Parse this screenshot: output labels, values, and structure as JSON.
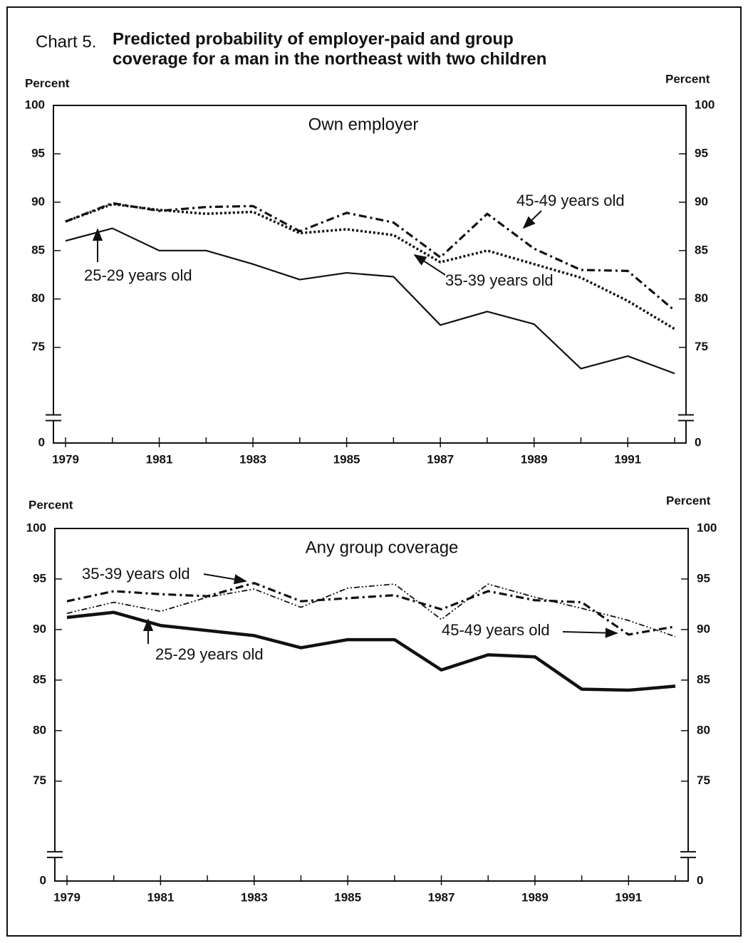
{
  "label": "Chart 5.",
  "title": [
    "Predicted probability of employer-paid and group",
    "coverage for a man in the northeast with two children"
  ],
  "chart_data": [
    {
      "type": "line",
      "title": "Own employer",
      "y_label": "Percent",
      "y2_label": "Percent",
      "x": [
        1979,
        1980,
        1981,
        1982,
        1983,
        1984,
        1985,
        1986,
        1987,
        1988,
        1989,
        1990,
        1991,
        1992
      ],
      "xlim": [
        1979,
        1992
      ],
      "xticks": [
        1979,
        1981,
        1983,
        1985,
        1987,
        1989,
        1991
      ],
      "ylim": [
        0,
        100
      ],
      "yticks": [
        0,
        75,
        80,
        85,
        90,
        95,
        100
      ],
      "y2lim": [
        0,
        100
      ],
      "y2ticks": [
        0,
        75,
        80,
        85,
        90,
        95,
        100
      ],
      "axis_break": [
        0,
        70
      ],
      "series": [
        {
          "name": "25-29 years old",
          "color": "#111111",
          "style": "solid",
          "values": [
            86.0,
            87.3,
            85.0,
            85.0,
            83.6,
            82.0,
            82.7,
            82.3,
            77.3,
            78.7,
            77.4,
            72.8,
            74.1,
            72.3
          ]
        },
        {
          "name": "35-39 years old",
          "color": "#111111",
          "style": "dotted",
          "values": [
            88.0,
            89.8,
            89.2,
            88.8,
            89.0,
            86.8,
            87.2,
            86.6,
            83.8,
            85.0,
            83.6,
            82.2,
            79.8,
            76.9
          ]
        },
        {
          "name": "45-49 years old",
          "color": "#111111",
          "style": "dashdot",
          "values": [
            88.0,
            89.9,
            89.1,
            89.5,
            89.6,
            87.0,
            88.9,
            87.9,
            84.3,
            88.8,
            85.2,
            83.0,
            82.9,
            78.8
          ]
        }
      ]
    },
    {
      "type": "line",
      "title": "Any group coverage",
      "y_label": "Percent",
      "y2_label": "Percent",
      "x": [
        1979,
        1980,
        1981,
        1982,
        1983,
        1984,
        1985,
        1986,
        1987,
        1988,
        1989,
        1990,
        1991,
        1992
      ],
      "xlim": [
        1979,
        1992
      ],
      "xticks": [
        1979,
        1981,
        1983,
        1985,
        1987,
        1989,
        1991
      ],
      "ylim": [
        0,
        100
      ],
      "yticks": [
        0,
        75,
        80,
        85,
        90,
        95,
        100
      ],
      "y2lim": [
        0,
        100
      ],
      "y2ticks": [
        0,
        75,
        80,
        85,
        90,
        95,
        100
      ],
      "axis_break": [
        0,
        70
      ],
      "series": [
        {
          "name": "25-29 years old",
          "color": "#111111",
          "style": "thick",
          "values": [
            91.2,
            91.7,
            90.4,
            89.9,
            89.4,
            88.2,
            89.0,
            89.0,
            86.0,
            87.5,
            87.3,
            84.1,
            84.0,
            84.4
          ]
        },
        {
          "name": "35-39 years old",
          "color": "#111111",
          "style": "dashdot",
          "values": [
            92.8,
            93.8,
            93.5,
            93.3,
            94.6,
            92.8,
            93.1,
            93.4,
            92.0,
            93.8,
            92.9,
            92.7,
            89.5,
            90.3
          ]
        },
        {
          "name": "45-49 years old",
          "color": "#111111",
          "style": "dashdotdot",
          "values": [
            91.6,
            92.7,
            91.8,
            93.2,
            94.0,
            92.2,
            94.1,
            94.5,
            91.0,
            94.5,
            93.2,
            92.1,
            90.9,
            89.3
          ]
        }
      ]
    }
  ]
}
